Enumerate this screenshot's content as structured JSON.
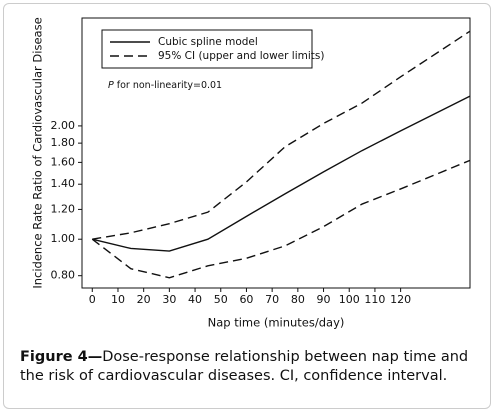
{
  "chart_data": {
    "type": "line",
    "y_label": "Incidence Rate Ratio of Cardiovascular Disease",
    "x_label": "Nap time (minutes/day)",
    "annotation": {
      "italic": "P",
      "text": "for non-linearity=0.01"
    },
    "caption": {
      "label": "Figure 4—",
      "text": "Dose-response relationship between nap time and the risk of cardiovascular diseases. CI, confidence interval."
    },
    "x": [
      0,
      15,
      30,
      45,
      60,
      75,
      90,
      105,
      120,
      147
    ],
    "series": [
      {
        "name": "Cubic spline model",
        "color": "#111111",
        "dashed": false,
        "values": [
          1.0,
          0.945,
          0.93,
          1.0,
          1.15,
          1.32,
          1.51,
          1.72,
          1.94,
          2.4
        ]
      },
      {
        "name": "95% CI (upper and lower limits)",
        "color": "#111111",
        "dashed": true,
        "upper": [
          1.0,
          1.04,
          1.1,
          1.18,
          1.42,
          1.76,
          2.03,
          2.3,
          2.7,
          3.57
        ],
        "lower": [
          1.0,
          0.835,
          0.79,
          0.85,
          0.89,
          0.96,
          1.08,
          1.24,
          1.36,
          1.62
        ]
      }
    ],
    "xlim": [
      -4,
      147
    ],
    "xticks": [
      0,
      10,
      20,
      30,
      40,
      50,
      60,
      70,
      80,
      90,
      100,
      110,
      120
    ],
    "ylim": [
      0.742,
      3.87
    ],
    "ylog": true,
    "yticks": [
      {
        "value": 0.8,
        "label": "0.80"
      },
      {
        "value": 1,
        "label": "1.00"
      },
      {
        "value": 1.2,
        "label": "1.20"
      },
      {
        "value": 1.4,
        "label": "1.40"
      },
      {
        "value": 1.6,
        "label": "1.60"
      },
      {
        "value": 1.8,
        "label": "1.80"
      },
      {
        "value": 2,
        "label": "2.00"
      }
    ],
    "legend": "upper-left"
  }
}
